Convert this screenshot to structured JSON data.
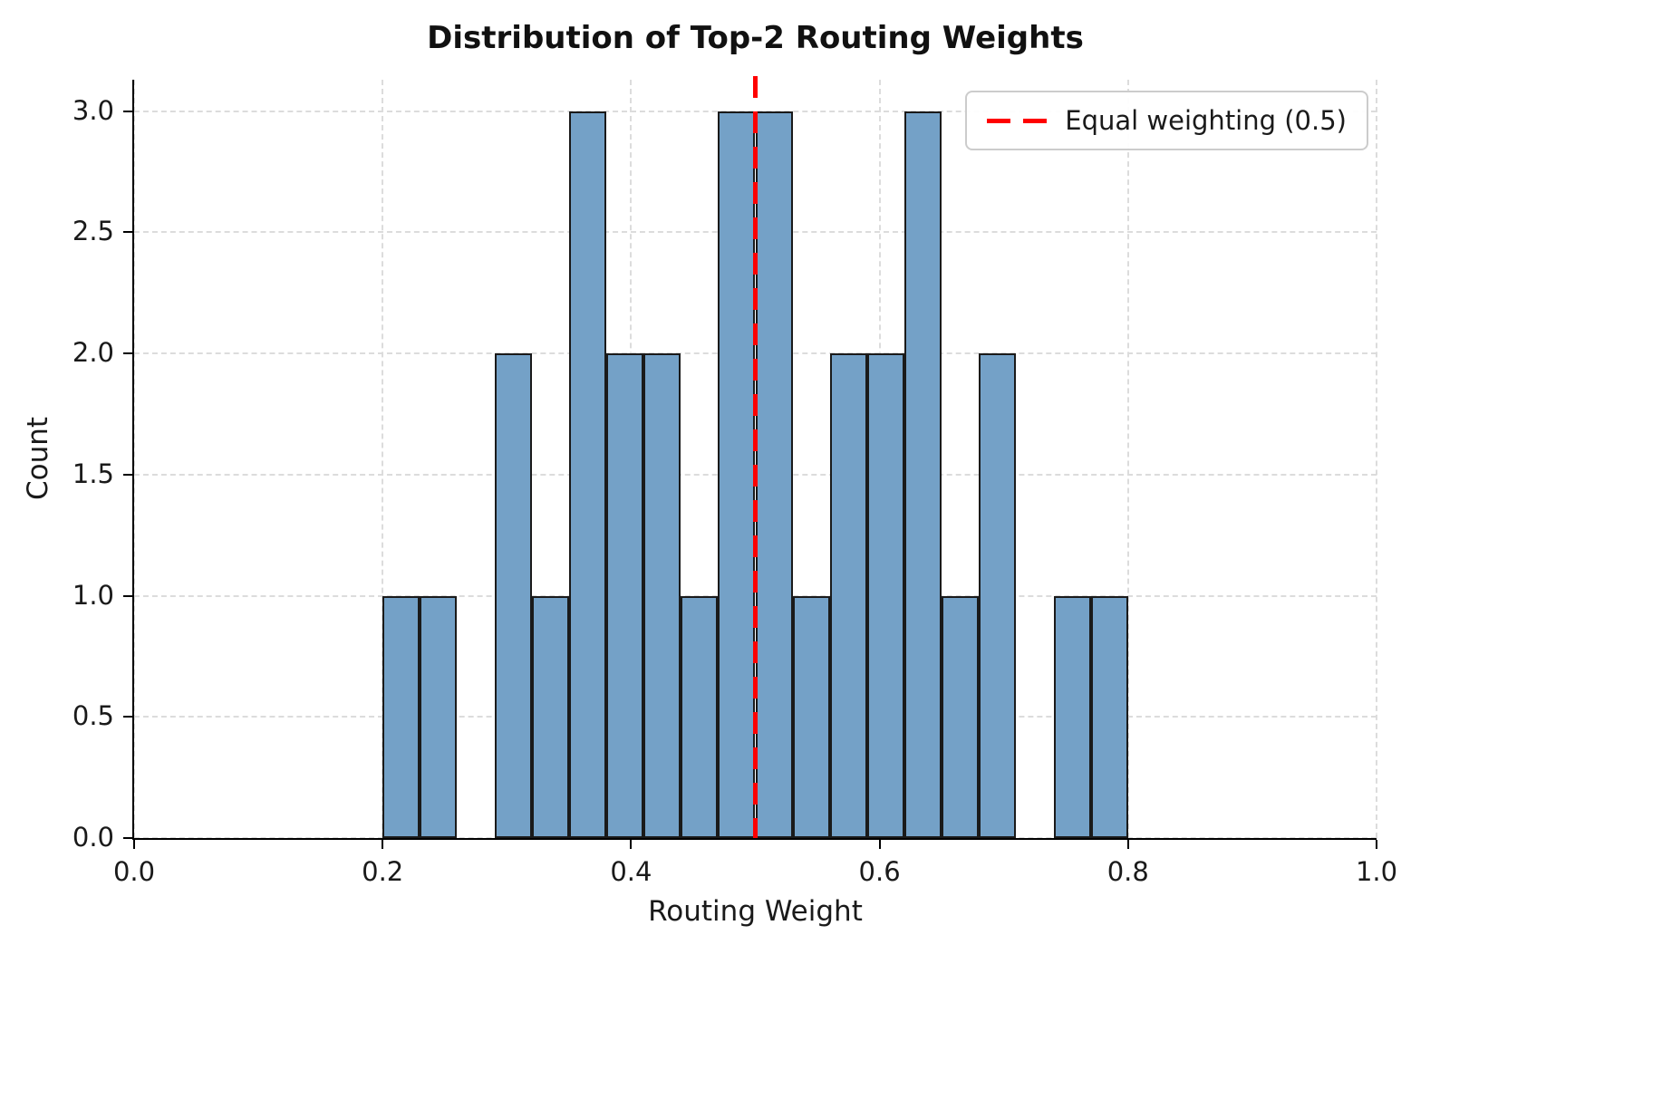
{
  "chart_data": {
    "type": "bar",
    "subtype": "histogram",
    "title": "Distribution of Top-2 Routing Weights",
    "xlabel": "Routing Weight",
    "ylabel": "Count",
    "xlim": [
      0.0,
      1.0
    ],
    "ylim": [
      0.0,
      3.13
    ],
    "xticks": [
      0.0,
      0.2,
      0.4,
      0.6,
      0.8,
      1.0
    ],
    "xtick_labels": [
      "0.0",
      "0.2",
      "0.4",
      "0.6",
      "0.8",
      "1.0"
    ],
    "yticks": [
      0.0,
      0.5,
      1.0,
      1.5,
      2.0,
      2.5,
      3.0
    ],
    "ytick_labels": [
      "0.0",
      "0.5",
      "1.0",
      "1.5",
      "2.0",
      "2.5",
      "3.0"
    ],
    "grid": true,
    "bin_start": 0.2,
    "bin_width": 0.03,
    "counts": [
      1,
      1,
      0,
      2,
      1,
      3,
      2,
      2,
      1,
      3,
      3,
      1,
      2,
      2,
      3,
      1,
      2,
      0,
      1,
      1
    ],
    "vline": {
      "x": 0.5,
      "style": "dashed",
      "color": "#ff0000",
      "label": "Equal weighting (0.5)"
    },
    "colors": {
      "bar_fill": "#74a1c7",
      "bar_edge": "#1a1a1a",
      "grid": "#dcdcdc",
      "axis": "#000000"
    },
    "legend": {
      "position": "upper right",
      "entries": [
        {
          "label": "Equal weighting (0.5)",
          "color": "#ff0000",
          "style": "dashed"
        }
      ]
    }
  }
}
